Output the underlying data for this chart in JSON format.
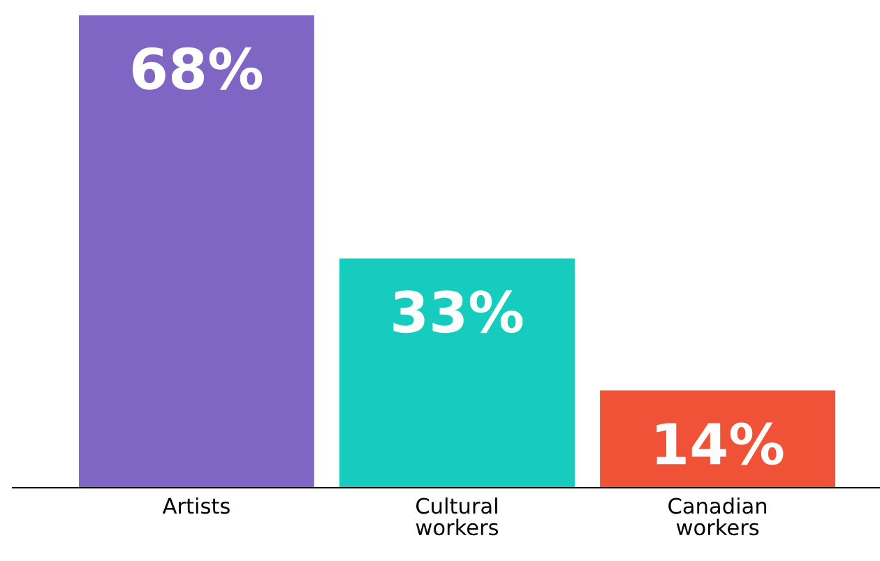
{
  "chart_data": {
    "type": "bar",
    "categories": [
      "Artists",
      "Cultural workers",
      "Canadian workers"
    ],
    "values": [
      68,
      33,
      14
    ],
    "colors": [
      "#8066c4",
      "#15ccbf",
      "#f05237"
    ],
    "value_labels": [
      "68%",
      "33%",
      "14%"
    ],
    "grid": false,
    "legend": false
  }
}
